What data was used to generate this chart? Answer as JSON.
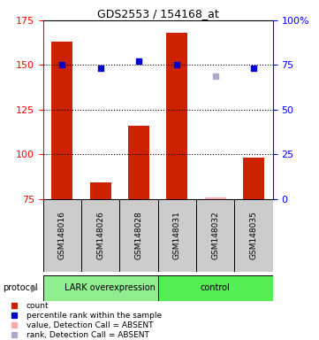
{
  "title": "GDS2553 / 154168_at",
  "samples": [
    "GSM148016",
    "GSM148026",
    "GSM148028",
    "GSM148031",
    "GSM148032",
    "GSM148035"
  ],
  "bar_values": [
    163,
    84,
    116,
    168,
    null,
    98
  ],
  "bar_color": "#cc2200",
  "absent_bar_value": 76,
  "absent_bar_color": "#ffaaaa",
  "rank_values_pct": [
    75,
    73,
    77,
    75,
    null,
    73
  ],
  "rank_color": "#0000cc",
  "absent_rank_pct": 69,
  "absent_rank_color": "#aaaacc",
  "ymin": 75,
  "ymax": 175,
  "yticks": [
    75,
    100,
    125,
    150,
    175
  ],
  "y2min": 0,
  "y2max": 100,
  "y2ticks": [
    0,
    25,
    50,
    75,
    100
  ],
  "y2labels": [
    "0",
    "25",
    "50",
    "75",
    "100%"
  ],
  "dotted_lines_pct": [
    25,
    50,
    75
  ],
  "lark_color": "#90ee90",
  "control_color": "#55ee55",
  "label_bg": "#cccccc",
  "group_boundary": 3
}
